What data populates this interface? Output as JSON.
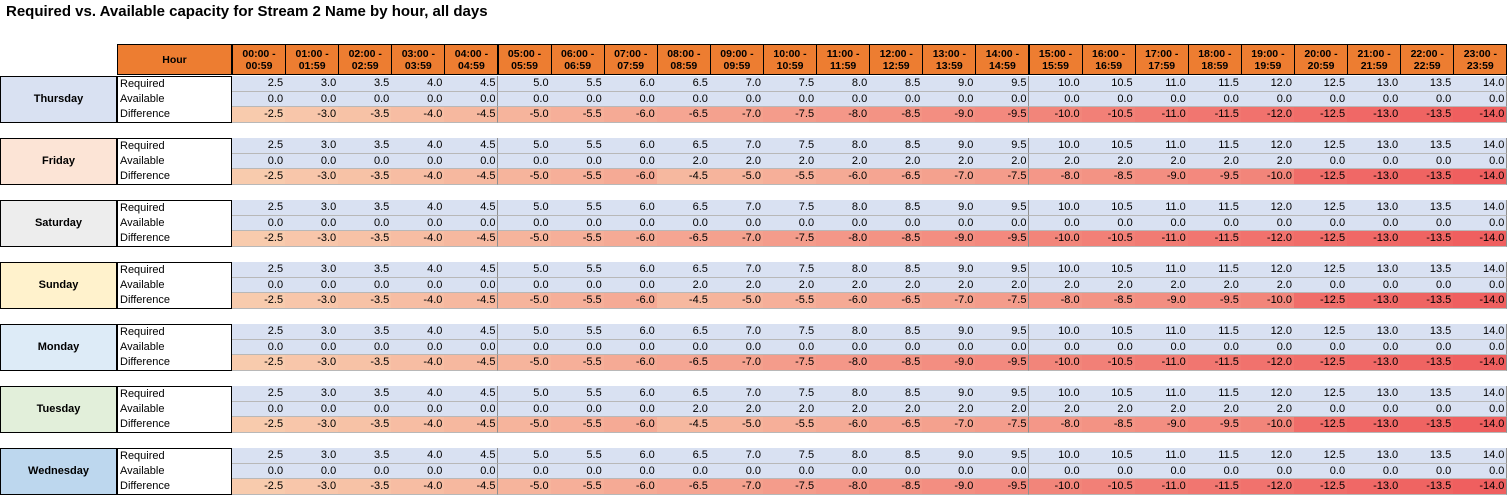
{
  "title": "Required vs. Available capacity for Stream 2 Name by hour, all days",
  "header_label": "Hour",
  "row_labels": [
    "Required",
    "Available",
    "Difference"
  ],
  "hours": [
    "00:00 - 00:59",
    "01:00 - 01:59",
    "02:00 - 02:59",
    "03:00 - 03:59",
    "04:00 - 04:59",
    "05:00 - 05:59",
    "06:00 - 06:59",
    "07:00 - 07:59",
    "08:00 - 08:59",
    "09:00 - 09:59",
    "10:00 - 10:59",
    "11:00 - 11:59",
    "12:00 - 12:59",
    "13:00 - 13:59",
    "14:00 - 14:59",
    "15:00 - 15:59",
    "16:00 - 16:59",
    "17:00 - 17:59",
    "18:00 - 18:59",
    "19:00 - 19:59",
    "20:00 - 20:59",
    "21:00 - 21:59",
    "22:00 - 22:59",
    "23:00 - 23:59"
  ],
  "colors": {
    "header": "#ED7D31",
    "data": "#D9E1F2",
    "diff_low": "#F8CBAD",
    "diff_high": "#EF5F5F"
  },
  "days": [
    {
      "name": "Thursday",
      "color": "#D9E1F2",
      "required": [
        "2.5",
        "3.0",
        "3.5",
        "4.0",
        "4.5",
        "5.0",
        "5.5",
        "6.0",
        "6.5",
        "7.0",
        "7.5",
        "8.0",
        "8.5",
        "9.0",
        "9.5",
        "10.0",
        "10.5",
        "11.0",
        "11.5",
        "12.0",
        "12.5",
        "13.0",
        "13.5",
        "14.0"
      ],
      "available": [
        "0.0",
        "0.0",
        "0.0",
        "0.0",
        "0.0",
        "0.0",
        "0.0",
        "0.0",
        "0.0",
        "0.0",
        "0.0",
        "0.0",
        "0.0",
        "0.0",
        "0.0",
        "0.0",
        "0.0",
        "0.0",
        "0.0",
        "0.0",
        "0.0",
        "0.0",
        "0.0",
        "0.0"
      ],
      "difference": [
        "-2.5",
        "-3.0",
        "-3.5",
        "-4.0",
        "-4.5",
        "-5.0",
        "-5.5",
        "-6.0",
        "-6.5",
        "-7.0",
        "-7.5",
        "-8.0",
        "-8.5",
        "-9.0",
        "-9.5",
        "-10.0",
        "-10.5",
        "-11.0",
        "-11.5",
        "-12.0",
        "-12.5",
        "-13.0",
        "-13.5",
        "-14.0"
      ]
    },
    {
      "name": "Friday",
      "color": "#FCE4D6",
      "required": [
        "2.5",
        "3.0",
        "3.5",
        "4.0",
        "4.5",
        "5.0",
        "5.5",
        "6.0",
        "6.5",
        "7.0",
        "7.5",
        "8.0",
        "8.5",
        "9.0",
        "9.5",
        "10.0",
        "10.5",
        "11.0",
        "11.5",
        "12.0",
        "12.5",
        "13.0",
        "13.5",
        "14.0"
      ],
      "available": [
        "0.0",
        "0.0",
        "0.0",
        "0.0",
        "0.0",
        "0.0",
        "0.0",
        "0.0",
        "2.0",
        "2.0",
        "2.0",
        "2.0",
        "2.0",
        "2.0",
        "2.0",
        "2.0",
        "2.0",
        "2.0",
        "2.0",
        "2.0",
        "0.0",
        "0.0",
        "0.0",
        "0.0"
      ],
      "difference": [
        "-2.5",
        "-3.0",
        "-3.5",
        "-4.0",
        "-4.5",
        "-5.0",
        "-5.5",
        "-6.0",
        "-4.5",
        "-5.0",
        "-5.5",
        "-6.0",
        "-6.5",
        "-7.0",
        "-7.5",
        "-8.0",
        "-8.5",
        "-9.0",
        "-9.5",
        "-10.0",
        "-12.5",
        "-13.0",
        "-13.5",
        "-14.0"
      ]
    },
    {
      "name": "Saturday",
      "color": "#EDEDED",
      "required": [
        "2.5",
        "3.0",
        "3.5",
        "4.0",
        "4.5",
        "5.0",
        "5.5",
        "6.0",
        "6.5",
        "7.0",
        "7.5",
        "8.0",
        "8.5",
        "9.0",
        "9.5",
        "10.0",
        "10.5",
        "11.0",
        "11.5",
        "12.0",
        "12.5",
        "13.0",
        "13.5",
        "14.0"
      ],
      "available": [
        "0.0",
        "0.0",
        "0.0",
        "0.0",
        "0.0",
        "0.0",
        "0.0",
        "0.0",
        "0.0",
        "0.0",
        "0.0",
        "0.0",
        "0.0",
        "0.0",
        "0.0",
        "0.0",
        "0.0",
        "0.0",
        "0.0",
        "0.0",
        "0.0",
        "0.0",
        "0.0",
        "0.0"
      ],
      "difference": [
        "-2.5",
        "-3.0",
        "-3.5",
        "-4.0",
        "-4.5",
        "-5.0",
        "-5.5",
        "-6.0",
        "-6.5",
        "-7.0",
        "-7.5",
        "-8.0",
        "-8.5",
        "-9.0",
        "-9.5",
        "-10.0",
        "-10.5",
        "-11.0",
        "-11.5",
        "-12.0",
        "-12.5",
        "-13.0",
        "-13.5",
        "-14.0"
      ]
    },
    {
      "name": "Sunday",
      "color": "#FFF2CC",
      "required": [
        "2.5",
        "3.0",
        "3.5",
        "4.0",
        "4.5",
        "5.0",
        "5.5",
        "6.0",
        "6.5",
        "7.0",
        "7.5",
        "8.0",
        "8.5",
        "9.0",
        "9.5",
        "10.0",
        "10.5",
        "11.0",
        "11.5",
        "12.0",
        "12.5",
        "13.0",
        "13.5",
        "14.0"
      ],
      "available": [
        "0.0",
        "0.0",
        "0.0",
        "0.0",
        "0.0",
        "0.0",
        "0.0",
        "0.0",
        "2.0",
        "2.0",
        "2.0",
        "2.0",
        "2.0",
        "2.0",
        "2.0",
        "2.0",
        "2.0",
        "2.0",
        "2.0",
        "2.0",
        "0.0",
        "0.0",
        "0.0",
        "0.0"
      ],
      "difference": [
        "-2.5",
        "-3.0",
        "-3.5",
        "-4.0",
        "-4.5",
        "-5.0",
        "-5.5",
        "-6.0",
        "-4.5",
        "-5.0",
        "-5.5",
        "-6.0",
        "-6.5",
        "-7.0",
        "-7.5",
        "-8.0",
        "-8.5",
        "-9.0",
        "-9.5",
        "-10.0",
        "-12.5",
        "-13.0",
        "-13.5",
        "-14.0"
      ]
    },
    {
      "name": "Monday",
      "color": "#DDEBF7",
      "required": [
        "2.5",
        "3.0",
        "3.5",
        "4.0",
        "4.5",
        "5.0",
        "5.5",
        "6.0",
        "6.5",
        "7.0",
        "7.5",
        "8.0",
        "8.5",
        "9.0",
        "9.5",
        "10.0",
        "10.5",
        "11.0",
        "11.5",
        "12.0",
        "12.5",
        "13.0",
        "13.5",
        "14.0"
      ],
      "available": [
        "0.0",
        "0.0",
        "0.0",
        "0.0",
        "0.0",
        "0.0",
        "0.0",
        "0.0",
        "0.0",
        "0.0",
        "0.0",
        "0.0",
        "0.0",
        "0.0",
        "0.0",
        "0.0",
        "0.0",
        "0.0",
        "0.0",
        "0.0",
        "0.0",
        "0.0",
        "0.0",
        "0.0"
      ],
      "difference": [
        "-2.5",
        "-3.0",
        "-3.5",
        "-4.0",
        "-4.5",
        "-5.0",
        "-5.5",
        "-6.0",
        "-6.5",
        "-7.0",
        "-7.5",
        "-8.0",
        "-8.5",
        "-9.0",
        "-9.5",
        "-10.0",
        "-10.5",
        "-11.0",
        "-11.5",
        "-12.0",
        "-12.5",
        "-13.0",
        "-13.5",
        "-14.0"
      ]
    },
    {
      "name": "Tuesday",
      "color": "#E2EFDA",
      "required": [
        "2.5",
        "3.0",
        "3.5",
        "4.0",
        "4.5",
        "5.0",
        "5.5",
        "6.0",
        "6.5",
        "7.0",
        "7.5",
        "8.0",
        "8.5",
        "9.0",
        "9.5",
        "10.0",
        "10.5",
        "11.0",
        "11.5",
        "12.0",
        "12.5",
        "13.0",
        "13.5",
        "14.0"
      ],
      "available": [
        "0.0",
        "0.0",
        "0.0",
        "0.0",
        "0.0",
        "0.0",
        "0.0",
        "0.0",
        "2.0",
        "2.0",
        "2.0",
        "2.0",
        "2.0",
        "2.0",
        "2.0",
        "2.0",
        "2.0",
        "2.0",
        "2.0",
        "2.0",
        "0.0",
        "0.0",
        "0.0",
        "0.0"
      ],
      "difference": [
        "-2.5",
        "-3.0",
        "-3.5",
        "-4.0",
        "-4.5",
        "-5.0",
        "-5.5",
        "-6.0",
        "-4.5",
        "-5.0",
        "-5.5",
        "-6.0",
        "-6.5",
        "-7.0",
        "-7.5",
        "-8.0",
        "-8.5",
        "-9.0",
        "-9.5",
        "-10.0",
        "-12.5",
        "-13.0",
        "-13.5",
        "-14.0"
      ]
    },
    {
      "name": "Wednesday",
      "color": "#BDD7EE",
      "required": [
        "2.5",
        "3.0",
        "3.5",
        "4.0",
        "4.5",
        "5.0",
        "5.5",
        "6.0",
        "6.5",
        "7.0",
        "7.5",
        "8.0",
        "8.5",
        "9.0",
        "9.5",
        "10.0",
        "10.5",
        "11.0",
        "11.5",
        "12.0",
        "12.5",
        "13.0",
        "13.5",
        "14.0"
      ],
      "available": [
        "0.0",
        "0.0",
        "0.0",
        "0.0",
        "0.0",
        "0.0",
        "0.0",
        "0.0",
        "0.0",
        "0.0",
        "0.0",
        "0.0",
        "0.0",
        "0.0",
        "0.0",
        "0.0",
        "0.0",
        "0.0",
        "0.0",
        "0.0",
        "0.0",
        "0.0",
        "0.0",
        "0.0"
      ],
      "difference": [
        "-2.5",
        "-3.0",
        "-3.5",
        "-4.0",
        "-4.5",
        "-5.0",
        "-5.5",
        "-6.0",
        "-6.5",
        "-7.0",
        "-7.5",
        "-8.0",
        "-8.5",
        "-9.0",
        "-9.5",
        "-10.0",
        "-10.5",
        "-11.0",
        "-11.5",
        "-12.0",
        "-12.5",
        "-13.0",
        "-13.5",
        "-14.0"
      ]
    }
  ]
}
